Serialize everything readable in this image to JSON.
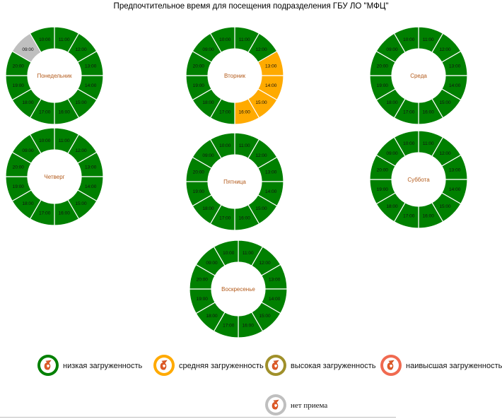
{
  "title": "Предпочтительное время для посещения подразделения ГБУ ЛО \"МФЦ\"",
  "colors": {
    "low": "#008000",
    "medium": "#ffaa00",
    "high": "#a0902a",
    "highest": "#f06a50",
    "none": "#bfbfbf"
  },
  "legend": [
    {
      "status": "low",
      "label": "низкая загруженность"
    },
    {
      "status": "medium",
      "label": "средняя загруженность"
    },
    {
      "status": "high",
      "label": "высокая загруженность"
    },
    {
      "status": "highest",
      "label": "наивысшая загруженность"
    },
    {
      "status": "none",
      "label": "нет приема"
    }
  ],
  "chart_data": {
    "type": "pie",
    "hours": [
      "11:00",
      "12:00",
      "13:00",
      "14:00",
      "15:00",
      "16:00",
      "17:00",
      "18:00",
      "19:00",
      "20:00",
      "09:00",
      "10:00"
    ],
    "days": [
      {
        "name": "Понедельник",
        "statuses": [
          "low",
          "low",
          "low",
          "low",
          "low",
          "low",
          "low",
          "low",
          "low",
          "low",
          "none",
          "low"
        ]
      },
      {
        "name": "Вторник",
        "statuses": [
          "low",
          "low",
          "medium",
          "medium",
          "medium",
          "medium",
          "low",
          "low",
          "low",
          "low",
          "low",
          "low"
        ]
      },
      {
        "name": "Среда",
        "statuses": [
          "low",
          "low",
          "low",
          "low",
          "low",
          "low",
          "low",
          "low",
          "low",
          "low",
          "low",
          "low"
        ]
      },
      {
        "name": "Четверг",
        "statuses": [
          "low",
          "low",
          "low",
          "low",
          "low",
          "low",
          "low",
          "low",
          "low",
          "low",
          "low",
          "low"
        ]
      },
      {
        "name": "Пятница",
        "statuses": [
          "low",
          "low",
          "low",
          "low",
          "low",
          "low",
          "low",
          "low",
          "low",
          "low",
          "low",
          "low"
        ]
      },
      {
        "name": "Суббота",
        "statuses": [
          "low",
          "low",
          "low",
          "low",
          "low",
          "low",
          "low",
          "low",
          "low",
          "low",
          "low",
          "low"
        ]
      },
      {
        "name": "Воскресенье",
        "statuses": [
          "low",
          "low",
          "low",
          "low",
          "low",
          "low",
          "low",
          "low",
          "low",
          "low",
          "low",
          "low"
        ]
      }
    ]
  }
}
